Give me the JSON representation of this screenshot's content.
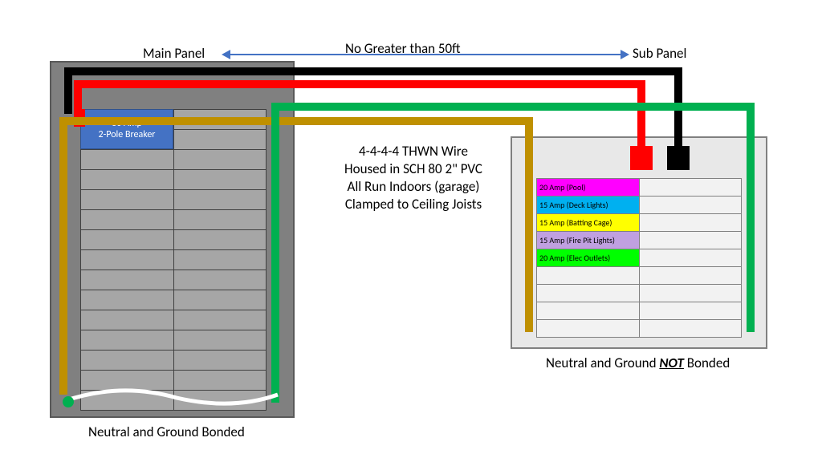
{
  "labels": {
    "main_panel": "Main Panel",
    "sub_panel": "Sub Panel",
    "distance": "No Greater than 50ft",
    "main_bonded": "Neutral and Ground Bonded",
    "sub_bonded_pre": "Neutral and Ground ",
    "sub_bonded_not": "NOT",
    "sub_bonded_post": " Bonded"
  },
  "center_notes": [
    "4-4-4-4 THWN Wire",
    "Housed in SCH 80 2\" PVC",
    "All Run Indoors (garage)",
    "Clamped to Ceiling Joists"
  ],
  "main_breaker": {
    "line1": "60 Amp",
    "line2": "2-Pole Breaker"
  },
  "main_panel": {
    "rows": 15
  },
  "sub_panel": {
    "rows": 9,
    "circuits": [
      {
        "label": "20 Amp (Pool)",
        "color": "#ff00ff"
      },
      {
        "label": "15 Amp (Deck Lights)",
        "color": "#00b0f0"
      },
      {
        "label": "15 Amp (Batting Cage)",
        "color": "#ffff00"
      },
      {
        "label": "15 Amp (Fire Pit Lights)",
        "color": "#c0a0e0"
      },
      {
        "label": "20 Amp (Elec Outlets)",
        "color": "#00ff00"
      }
    ]
  },
  "colors": {
    "black": "#000000",
    "red": "#ff0000",
    "gold": "#bf9000",
    "green": "#00b050",
    "white": "#ffffff",
    "panel_gray": "#808080",
    "sub_gray": "#e8e8e8",
    "arrow": "#4472c4"
  },
  "wire_thickness": 10
}
